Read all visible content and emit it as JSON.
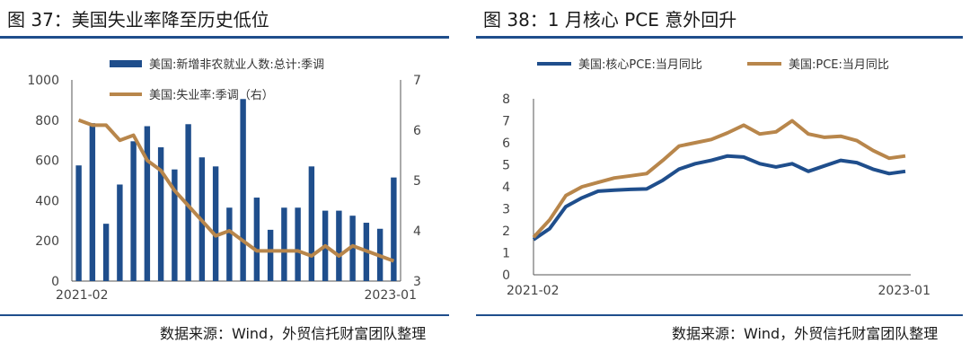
{
  "left": {
    "title": "图 37：美国失业率降至历史低位",
    "source": "数据来源：Wind，外贸信托财富团队整理",
    "chart_data": {
      "type": "bar",
      "categories": [
        "2021-02",
        "2021-03",
        "2021-04",
        "2021-05",
        "2021-06",
        "2021-07",
        "2021-08",
        "2021-09",
        "2021-10",
        "2021-11",
        "2021-12",
        "2022-01",
        "2022-02",
        "2022-03",
        "2022-04",
        "2022-05",
        "2022-06",
        "2022-07",
        "2022-08",
        "2022-09",
        "2022-10",
        "2022-11",
        "2022-12",
        "2023-01"
      ],
      "x_tick_labels": [
        "2021-02",
        "2023-01"
      ],
      "series": [
        {
          "name": "美国:新增非农就业人数:总计:季调",
          "type": "bar",
          "axis": "left",
          "color": "#1f4e8c",
          "values": [
            575,
            785,
            285,
            480,
            695,
            770,
            665,
            555,
            780,
            615,
            570,
            365,
            905,
            415,
            255,
            365,
            365,
            570,
            350,
            350,
            325,
            290,
            260,
            515
          ]
        },
        {
          "name": "美国:失业率:季调（右）",
          "type": "line",
          "axis": "right",
          "color": "#b8864b",
          "values": [
            6.2,
            6.1,
            6.1,
            5.8,
            5.9,
            5.4,
            5.2,
            4.8,
            4.5,
            4.2,
            3.9,
            4.0,
            3.8,
            3.6,
            3.6,
            3.6,
            3.6,
            3.5,
            3.7,
            3.5,
            3.7,
            3.6,
            3.5,
            3.4
          ]
        }
      ],
      "y_left": {
        "min": 0,
        "max": 1000,
        "ticks": [
          0,
          200,
          400,
          600,
          800,
          1000
        ]
      },
      "y_right": {
        "min": 3,
        "max": 7,
        "ticks": [
          3,
          4,
          5,
          6,
          7
        ]
      },
      "legend_placement": "top-center",
      "grid": false
    }
  },
  "right": {
    "title": "图 38：1 月核心 PCE 意外回升",
    "source": "数据来源：Wind，外贸信托财富团队整理",
    "chart_data": {
      "type": "line",
      "categories": [
        "2021-02",
        "2021-03",
        "2021-04",
        "2021-05",
        "2021-06",
        "2021-07",
        "2021-08",
        "2021-09",
        "2021-10",
        "2021-11",
        "2021-12",
        "2022-01",
        "2022-02",
        "2022-03",
        "2022-04",
        "2022-05",
        "2022-06",
        "2022-07",
        "2022-08",
        "2022-09",
        "2022-10",
        "2022-11",
        "2022-12",
        "2023-01"
      ],
      "x_tick_labels": [
        "2021-02",
        "2023-01"
      ],
      "series": [
        {
          "name": "美国:核心PCE:当月同比",
          "color": "#1f4e8c",
          "values": [
            1.6,
            2.1,
            3.1,
            3.5,
            3.8,
            3.85,
            3.88,
            3.9,
            4.3,
            4.8,
            5.05,
            5.2,
            5.4,
            5.35,
            5.05,
            4.9,
            5.05,
            4.7,
            4.95,
            5.2,
            5.1,
            4.8,
            4.6,
            4.7
          ]
        },
        {
          "name": "美国:PCE:当月同比",
          "color": "#b8864b",
          "values": [
            1.7,
            2.5,
            3.6,
            4.0,
            4.2,
            4.4,
            4.5,
            4.6,
            5.2,
            5.85,
            6.0,
            6.15,
            6.45,
            6.8,
            6.4,
            6.5,
            7.0,
            6.4,
            6.25,
            6.3,
            6.1,
            5.65,
            5.3,
            5.4
          ]
        }
      ],
      "y": {
        "min": 0,
        "max": 8,
        "ticks": [
          0,
          1,
          2,
          3,
          4,
          5,
          6,
          7,
          8
        ]
      },
      "legend_placement": "top-center",
      "grid": false
    }
  }
}
